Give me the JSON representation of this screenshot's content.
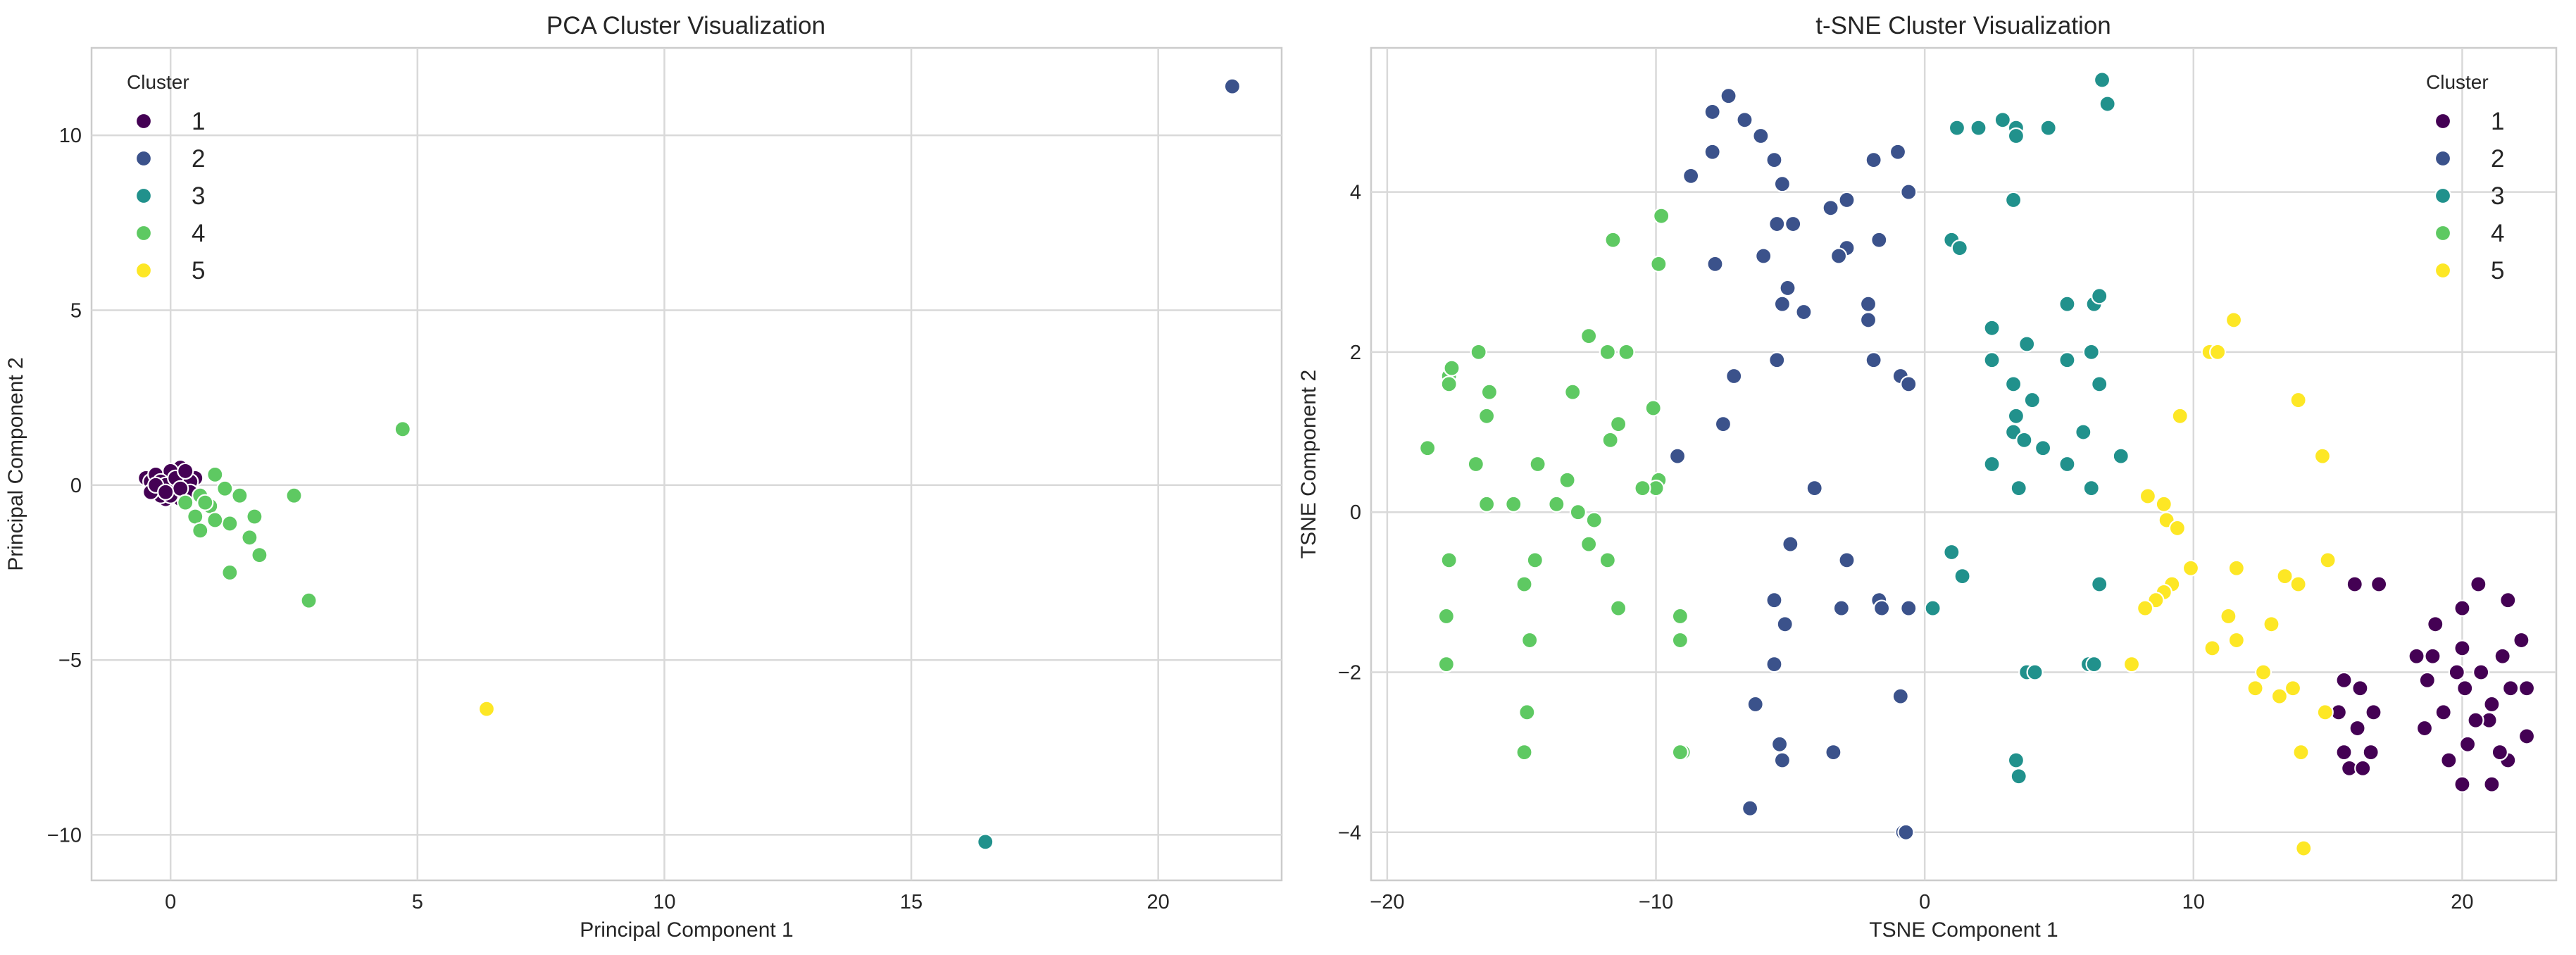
{
  "chart_data": [
    {
      "type": "scatter",
      "title": "PCA Cluster Visualization",
      "xlabel": "Principal Component 1",
      "ylabel": "Principal Component 2",
      "xlim": [
        -1.6,
        22.5
      ],
      "ylim": [
        -11.3,
        12.5
      ],
      "xticks": [
        0,
        5,
        10,
        15,
        20
      ],
      "yticks": [
        -10,
        -5,
        0,
        5,
        10
      ],
      "grid": true,
      "legend": {
        "title": "Cluster",
        "placement": "top-left"
      },
      "series": [
        {
          "name": "1",
          "color": "#440154",
          "points": [
            [
              -0.5,
              0.2
            ],
            [
              -0.4,
              0.1
            ],
            [
              -0.3,
              -0.1
            ],
            [
              -0.2,
              0.0
            ],
            [
              -0.1,
              0.2
            ],
            [
              0.0,
              -0.2
            ],
            [
              0.1,
              0.1
            ],
            [
              0.2,
              0.3
            ],
            [
              -0.3,
              0.3
            ],
            [
              0.3,
              -0.3
            ],
            [
              0.2,
              0.5
            ],
            [
              0.5,
              0.2
            ],
            [
              -0.1,
              -0.4
            ],
            [
              0.0,
              0.0
            ],
            [
              -0.2,
              -0.3
            ],
            [
              0.3,
              0.0
            ],
            [
              0.1,
              -0.1
            ],
            [
              -0.4,
              -0.2
            ],
            [
              0.4,
              0.1
            ],
            [
              0.0,
              0.4
            ],
            [
              -0.2,
              0.1
            ],
            [
              0.2,
              -0.4
            ],
            [
              -0.1,
              0.0
            ],
            [
              0.1,
              0.2
            ],
            [
              0.3,
              0.4
            ],
            [
              -0.3,
              0.0
            ],
            [
              0.0,
              -0.3
            ],
            [
              0.4,
              -0.2
            ],
            [
              0.2,
              -0.1
            ],
            [
              -0.1,
              -0.2
            ]
          ]
        },
        {
          "name": "2",
          "color": "#3b528b",
          "points": [
            [
              21.5,
              11.4
            ]
          ]
        },
        {
          "name": "3",
          "color": "#21918c",
          "points": [
            [
              16.5,
              -10.2
            ]
          ]
        },
        {
          "name": "4",
          "color": "#5ec962",
          "points": [
            [
              4.7,
              1.6
            ],
            [
              0.9,
              0.3
            ],
            [
              0.6,
              -0.3
            ],
            [
              1.1,
              -0.1
            ],
            [
              0.8,
              -0.6
            ],
            [
              1.4,
              -0.3
            ],
            [
              0.5,
              -0.9
            ],
            [
              1.7,
              -0.9
            ],
            [
              1.2,
              -1.1
            ],
            [
              0.9,
              -1.0
            ],
            [
              1.6,
              -1.5
            ],
            [
              0.6,
              -1.3
            ],
            [
              1.8,
              -2.0
            ],
            [
              1.2,
              -2.5
            ],
            [
              2.5,
              -0.3
            ],
            [
              2.8,
              -3.3
            ],
            [
              0.3,
              -0.5
            ],
            [
              0.7,
              -0.5
            ]
          ]
        },
        {
          "name": "5",
          "color": "#fde725",
          "points": [
            [
              6.4,
              -6.4
            ]
          ]
        }
      ]
    },
    {
      "type": "scatter",
      "title": "t-SNE Cluster Visualization",
      "xlabel": "TSNE Component 1",
      "ylabel": "TSNE Component 2",
      "xlim": [
        -20.6,
        23.5
      ],
      "ylim": [
        -4.6,
        5.8
      ],
      "xticks": [
        -20,
        -10,
        0,
        10,
        20
      ],
      "yticks": [
        -4,
        -2,
        0,
        2,
        4
      ],
      "grid": true,
      "legend": {
        "title": "Cluster",
        "placement": "top-right"
      },
      "series": [
        {
          "name": "1",
          "color": "#440154",
          "points": [
            [
              18.3,
              -1.8
            ],
            [
              19,
              -1.4
            ],
            [
              20,
              -1.2
            ],
            [
              20.6,
              -0.9
            ],
            [
              21.7,
              -1.1
            ],
            [
              22.2,
              -1.6
            ],
            [
              18.7,
              -2.1
            ],
            [
              19.3,
              -2.5
            ],
            [
              20.1,
              -2.2
            ],
            [
              21.1,
              -2.4
            ],
            [
              21.8,
              -2.2
            ],
            [
              22.4,
              -2.2
            ],
            [
              18.6,
              -2.7
            ],
            [
              19.5,
              -3.1
            ],
            [
              20.2,
              -2.9
            ],
            [
              21,
              -2.6
            ],
            [
              22.4,
              -2.8
            ],
            [
              20,
              -3.4
            ],
            [
              21.1,
              -3.4
            ],
            [
              21.7,
              -3.1
            ],
            [
              19.8,
              -2.0
            ],
            [
              20.5,
              -2.6
            ],
            [
              21.5,
              -1.8
            ],
            [
              15.6,
              -2.1
            ],
            [
              16.2,
              -2.2
            ],
            [
              15.4,
              -2.5
            ],
            [
              16.7,
              -2.5
            ],
            [
              16.1,
              -2.7
            ],
            [
              15.6,
              -3.0
            ],
            [
              16.6,
              -3.0
            ],
            [
              15.8,
              -3.2
            ],
            [
              16.3,
              -3.2
            ],
            [
              16.0,
              -0.9
            ],
            [
              16.9,
              -0.9
            ],
            [
              20.0,
              -1.7
            ],
            [
              21.4,
              -3.0
            ],
            [
              18.9,
              -1.8
            ],
            [
              20.7,
              -2.0
            ]
          ]
        },
        {
          "name": "2",
          "color": "#3b528b",
          "points": [
            [
              -7.3,
              5.2
            ],
            [
              -7.9,
              5.0
            ],
            [
              -6.7,
              4.9
            ],
            [
              -6.1,
              4.7
            ],
            [
              -8.7,
              4.2
            ],
            [
              -7.9,
              4.5
            ],
            [
              -5.6,
              4.4
            ],
            [
              -5.3,
              4.1
            ],
            [
              -1.9,
              4.4
            ],
            [
              -1.0,
              4.5
            ],
            [
              -0.6,
              4.0
            ],
            [
              -3.5,
              3.8
            ],
            [
              -2.9,
              3.9
            ],
            [
              -4.9,
              3.6
            ],
            [
              -5.5,
              3.6
            ],
            [
              -2.9,
              3.3
            ],
            [
              -3.2,
              3.2
            ],
            [
              -1.7,
              3.4
            ],
            [
              -6.0,
              3.2
            ],
            [
              -7.8,
              3.1
            ],
            [
              -5.1,
              2.8
            ],
            [
              -4.5,
              2.5
            ],
            [
              -5.3,
              2.6
            ],
            [
              -2.1,
              2.6
            ],
            [
              -2.1,
              2.4
            ],
            [
              -5.5,
              1.9
            ],
            [
              -1.9,
              1.9
            ],
            [
              -0.9,
              1.7
            ],
            [
              -0.6,
              1.6
            ],
            [
              -7.1,
              1.7
            ],
            [
              -7.5,
              1.1
            ],
            [
              -9.2,
              0.7
            ],
            [
              -4.1,
              0.3
            ],
            [
              -5.0,
              -0.4
            ],
            [
              -2.9,
              -0.6
            ],
            [
              -5.6,
              -1.1
            ],
            [
              -5.2,
              -1.4
            ],
            [
              -3.1,
              -1.2
            ],
            [
              -1.7,
              -1.1
            ],
            [
              -1.6,
              -1.2
            ],
            [
              -0.6,
              -1.2
            ],
            [
              -5.6,
              -1.9
            ],
            [
              -5.3,
              -3.1
            ],
            [
              -5.4,
              -2.9
            ],
            [
              -6.3,
              -2.4
            ],
            [
              -3.4,
              -3.0
            ],
            [
              -6.5,
              -3.7
            ],
            [
              -0.9,
              -2.3
            ],
            [
              -0.8,
              -4.0
            ],
            [
              -0.7,
              -4.0
            ]
          ]
        },
        {
          "name": "3",
          "color": "#21918c",
          "points": [
            [
              6.6,
              5.4
            ],
            [
              6.8,
              5.1
            ],
            [
              2.0,
              4.8
            ],
            [
              1.2,
              4.8
            ],
            [
              2.9,
              4.9
            ],
            [
              3.4,
              4.8
            ],
            [
              4.6,
              4.8
            ],
            [
              3.4,
              4.7
            ],
            [
              3.3,
              3.9
            ],
            [
              1.0,
              3.4
            ],
            [
              1.3,
              3.3
            ],
            [
              5.3,
              2.6
            ],
            [
              6.3,
              2.6
            ],
            [
              6.5,
              2.7
            ],
            [
              2.5,
              2.3
            ],
            [
              3.8,
              2.1
            ],
            [
              2.5,
              1.9
            ],
            [
              5.3,
              1.9
            ],
            [
              6.2,
              2.0
            ],
            [
              3.3,
              1.6
            ],
            [
              6.5,
              1.6
            ],
            [
              4.0,
              1.4
            ],
            [
              3.4,
              1.2
            ],
            [
              3.3,
              1.0
            ],
            [
              3.7,
              0.9
            ],
            [
              4.4,
              0.8
            ],
            [
              5.9,
              1.0
            ],
            [
              7.3,
              0.7
            ],
            [
              5.3,
              0.6
            ],
            [
              2.5,
              0.6
            ],
            [
              3.5,
              0.3
            ],
            [
              6.2,
              0.3
            ],
            [
              1.0,
              -0.5
            ],
            [
              1.4,
              -0.8
            ],
            [
              0.3,
              -1.2
            ],
            [
              6.5,
              -0.9
            ],
            [
              3.8,
              -2.0
            ],
            [
              4.1,
              -2.0
            ],
            [
              6.1,
              -1.9
            ],
            [
              6.3,
              -1.9
            ],
            [
              3.4,
              -3.1
            ],
            [
              3.5,
              -3.3
            ]
          ]
        },
        {
          "name": "4",
          "color": "#5ec962",
          "points": [
            [
              -9.8,
              3.7
            ],
            [
              -11.6,
              3.4
            ],
            [
              -9.9,
              3.1
            ],
            [
              -12.5,
              2.2
            ],
            [
              -11.1,
              2.0
            ],
            [
              -11.8,
              2.0
            ],
            [
              -16.6,
              2.0
            ],
            [
              -17.7,
              1.7
            ],
            [
              -17.6,
              1.8
            ],
            [
              -17.7,
              1.6
            ],
            [
              -16.2,
              1.5
            ],
            [
              -13.1,
              1.5
            ],
            [
              -10.1,
              1.3
            ],
            [
              -16.3,
              1.2
            ],
            [
              -11.4,
              1.1
            ],
            [
              -18.5,
              0.8
            ],
            [
              -11.7,
              0.9
            ],
            [
              -14.4,
              0.6
            ],
            [
              -16.7,
              0.6
            ],
            [
              -13.3,
              0.4
            ],
            [
              -9.9,
              0.4
            ],
            [
              -10.0,
              0.3
            ],
            [
              -10.5,
              0.3
            ],
            [
              -15.3,
              0.1
            ],
            [
              -16.3,
              0.1
            ],
            [
              -13.7,
              0.1
            ],
            [
              -12.9,
              0.0
            ],
            [
              -12.3,
              -0.1
            ],
            [
              -17.7,
              -0.6
            ],
            [
              -14.5,
              -0.6
            ],
            [
              -12.5,
              -0.4
            ],
            [
              -11.8,
              -0.6
            ],
            [
              -14.9,
              -0.9
            ],
            [
              -11.4,
              -1.2
            ],
            [
              -9.1,
              -1.3
            ],
            [
              -17.8,
              -1.3
            ],
            [
              -14.7,
              -1.6
            ],
            [
              -9.1,
              -1.6
            ],
            [
              -17.8,
              -1.9
            ],
            [
              -14.8,
              -2.5
            ],
            [
              -14.9,
              -3.0
            ],
            [
              -9.0,
              -3.0
            ],
            [
              -9.1,
              -3.0
            ]
          ]
        },
        {
          "name": "5",
          "color": "#fde725",
          "points": [
            [
              11.5,
              2.4
            ],
            [
              10.6,
              2.0
            ],
            [
              10.9,
              2.0
            ],
            [
              9.5,
              1.2
            ],
            [
              13.9,
              1.4
            ],
            [
              14.8,
              0.7
            ],
            [
              8.3,
              0.2
            ],
            [
              8.9,
              0.1
            ],
            [
              9.0,
              -0.1
            ],
            [
              9.4,
              -0.2
            ],
            [
              9.9,
              -0.7
            ],
            [
              11.6,
              -0.7
            ],
            [
              13.4,
              -0.8
            ],
            [
              13.9,
              -0.9
            ],
            [
              15.0,
              -0.6
            ],
            [
              9.2,
              -0.9
            ],
            [
              8.9,
              -1.0
            ],
            [
              8.6,
              -1.1
            ],
            [
              8.2,
              -1.2
            ],
            [
              11.3,
              -1.3
            ],
            [
              12.9,
              -1.4
            ],
            [
              10.7,
              -1.7
            ],
            [
              11.6,
              -1.6
            ],
            [
              7.7,
              -1.9
            ],
            [
              12.6,
              -2.0
            ],
            [
              12.3,
              -2.2
            ],
            [
              13.2,
              -2.3
            ],
            [
              13.7,
              -2.2
            ],
            [
              14.9,
              -2.5
            ],
            [
              14.0,
              -3.0
            ],
            [
              14.1,
              -4.2
            ]
          ]
        }
      ]
    }
  ]
}
